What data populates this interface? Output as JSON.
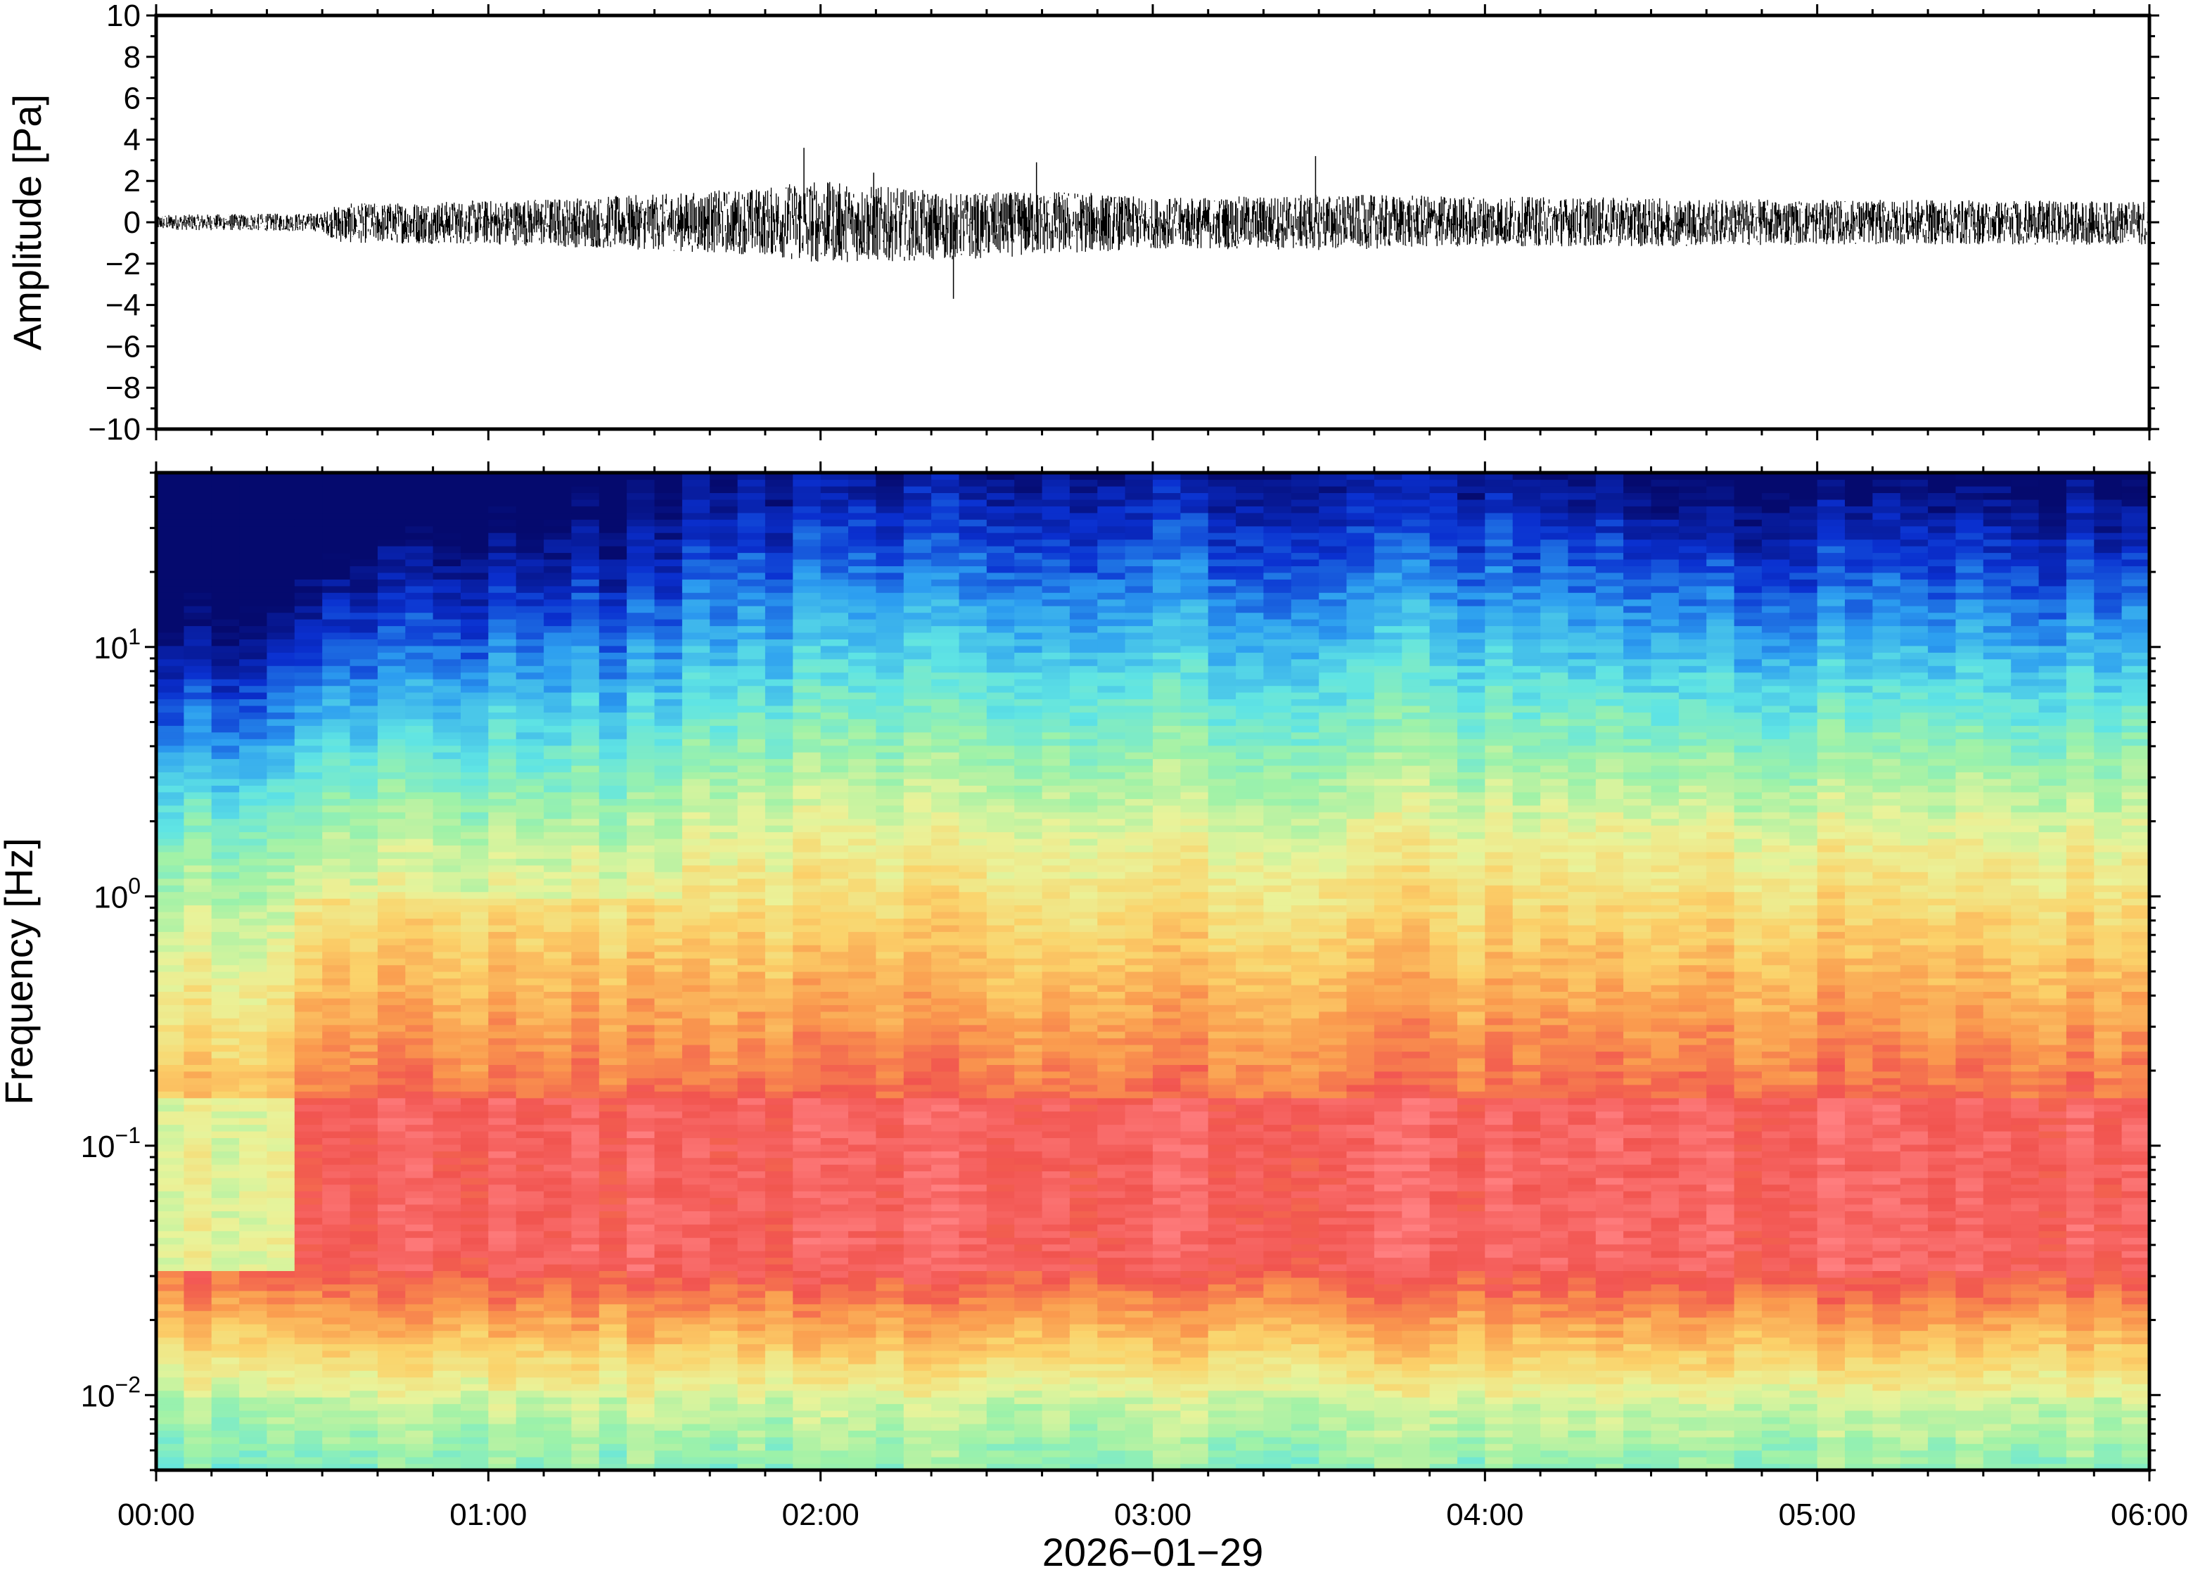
{
  "chart_data": [
    {
      "type": "line",
      "panel": "waveform",
      "ylabel": "Amplitude [Pa]",
      "ylim": [
        -10,
        10
      ],
      "yticks": [
        {
          "value": 10,
          "label": "10"
        },
        {
          "value": 8,
          "label": "8"
        },
        {
          "value": 6,
          "label": "6"
        },
        {
          "value": 4,
          "label": "4"
        },
        {
          "value": 2,
          "label": "2"
        },
        {
          "value": 0,
          "label": "0"
        },
        {
          "value": -2,
          "label": "−2"
        },
        {
          "value": -4,
          "label": "−4"
        },
        {
          "value": -6,
          "label": "−6"
        },
        {
          "value": -8,
          "label": "−8"
        },
        {
          "value": -10,
          "label": "−10"
        }
      ],
      "xlim_hours": [
        0,
        6
      ],
      "grid": false,
      "envelope": {
        "x_hours": [
          0,
          0.5,
          0.55,
          1.0,
          1.5,
          1.85,
          1.95,
          2.4,
          2.75,
          3.0,
          3.5,
          4.0,
          4.5,
          5.0,
          5.5,
          6.0
        ],
        "upper": [
          0.4,
          0.5,
          1.0,
          1.2,
          1.5,
          1.9,
          2.3,
          1.6,
          1.7,
          1.3,
          1.5,
          1.4,
          1.3,
          1.2,
          1.2,
          1.1
        ],
        "lower": [
          -0.4,
          -0.5,
          -1.1,
          -1.2,
          -1.5,
          -1.8,
          -2.2,
          -2.0,
          -1.7,
          -1.4,
          -1.5,
          -1.3,
          -1.3,
          -1.2,
          -1.2,
          -1.2
        ]
      },
      "spikes": [
        {
          "x_hours": 1.95,
          "value": 3.6
        },
        {
          "x_hours": 2.4,
          "value": -3.7
        },
        {
          "x_hours": 3.49,
          "value": 3.2
        },
        {
          "x_hours": 2.65,
          "value": 2.9
        },
        {
          "x_hours": 2.16,
          "value": 2.4
        }
      ]
    },
    {
      "type": "heatmap",
      "panel": "spectrogram",
      "ylabel": "Frequency [Hz]",
      "yscale": "log",
      "ylim_hz": [
        0.005,
        50
      ],
      "yticks": [
        {
          "value": 0.01,
          "base": "10",
          "exp": "−2"
        },
        {
          "value": 0.1,
          "base": "10",
          "exp": "−1"
        },
        {
          "value": 1,
          "base": "10",
          "exp": "0"
        },
        {
          "value": 10,
          "base": "10",
          "exp": "1"
        }
      ],
      "xlabel": "2026−01−29",
      "xlim_hours": [
        0,
        6
      ],
      "xticks": [
        {
          "value": 0,
          "label": "00:00"
        },
        {
          "value": 1,
          "label": "01:00"
        },
        {
          "value": 2,
          "label": "02:00"
        },
        {
          "value": 3,
          "label": "03:00"
        },
        {
          "value": 4,
          "label": "04:00"
        },
        {
          "value": 5,
          "label": "05:00"
        },
        {
          "value": 6,
          "label": "06:00"
        }
      ],
      "colormap": "jet-like (blue = low power, red = high power)",
      "colormap_stops": [
        "#050a6e",
        "#0a30d0",
        "#2c9df0",
        "#5fe4e4",
        "#9ef2a8",
        "#e9f39a",
        "#fbd26a",
        "#fa9a4e",
        "#f1544f",
        "#ff7f80"
      ],
      "time_segments_hours": [
        0,
        0.45,
        1.62,
        6.0
      ],
      "description_levels": {
        "x_hours": [
          0.2,
          1.0,
          2.0,
          3.0,
          4.0,
          4.6,
          5.5
        ],
        "blue_top_boundary_hz": [
          18,
          28,
          40,
          42,
          40,
          28,
          30
        ]
      }
    }
  ],
  "colors": {
    "trace": "#000000",
    "frame": "#000000",
    "background": "#ffffff"
  }
}
